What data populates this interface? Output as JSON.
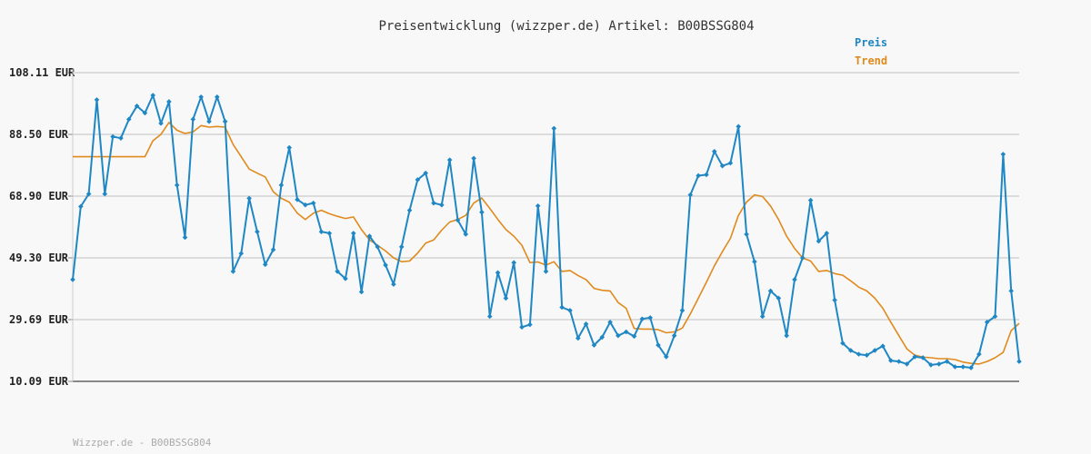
{
  "chart_data": {
    "type": "line",
    "title": "Preisentwicklung (wizzper.de) Artikel: B00BSSG804",
    "footer": "Wizzper.de - B00BSSG804",
    "ylim": [
      10.09,
      108.11
    ],
    "y_ticks": [
      "108.11 EUR",
      "88.50 EUR",
      "68.90 EUR",
      "49.30 EUR",
      "29.69 EUR",
      "10.09 EUR"
    ],
    "y_tick_values": [
      108.11,
      88.5,
      68.9,
      49.3,
      29.69,
      10.09
    ],
    "grid": true,
    "legend_position": "top-right",
    "colors": {
      "preis": "#1f87c4",
      "trend": "#e08a1e",
      "grid": "#dcdcdc",
      "axis": "#888888"
    },
    "series": [
      {
        "name": "Preis",
        "values": [
          42.4,
          65.6,
          69.6,
          99.5,
          69.6,
          87.8,
          87.3,
          93.3,
          97.5,
          95.3,
          100.9,
          92.0,
          98.9,
          72.4,
          55.8,
          93.3,
          100.4,
          92.6,
          100.4,
          92.6,
          45.0,
          50.7,
          68.2,
          57.6,
          47.2,
          51.9,
          72.4,
          84.3,
          67.8,
          66.1,
          66.7,
          57.6,
          57.1,
          45.0,
          42.7,
          57.1,
          38.5,
          56.2,
          52.8,
          47.0,
          40.9,
          52.8,
          64.4,
          74.1,
          76.2,
          66.7,
          66.1,
          80.4,
          61.3,
          56.8,
          80.9,
          63.8,
          30.7,
          44.6,
          36.5,
          47.8,
          27.3,
          28.1,
          65.8,
          45.0,
          90.4,
          33.6,
          32.6,
          23.8,
          28.3,
          21.6,
          24.1,
          28.9,
          24.6,
          25.8,
          24.4,
          29.9,
          30.3,
          21.6,
          17.9,
          24.6,
          32.6,
          69.3,
          75.4,
          75.7,
          83.1,
          78.5,
          79.4,
          91.0,
          56.8,
          48.1,
          30.7,
          38.8,
          36.5,
          24.6,
          42.4,
          49.3,
          67.6,
          54.6,
          57.1,
          35.9,
          22.2,
          19.9,
          18.7,
          18.4,
          19.9,
          21.3,
          16.7,
          16.4,
          15.6,
          17.9,
          17.6,
          15.3,
          15.6,
          16.4,
          14.7,
          14.7,
          14.4,
          18.7,
          28.9,
          30.7,
          82.2,
          38.8,
          16.4
        ],
        "color": "#1f87c4"
      },
      {
        "name": "Trend",
        "values": [
          81.4,
          81.4,
          81.4,
          81.4,
          81.4,
          81.4,
          81.4,
          81.4,
          81.4,
          81.4,
          86.5,
          88.5,
          92.3,
          89.8,
          88.8,
          89.3,
          91.3,
          90.8,
          91.0,
          90.8,
          85.3,
          81.4,
          77.5,
          76.2,
          75.0,
          70.3,
          68.2,
          67.0,
          63.5,
          61.5,
          63.5,
          64.4,
          63.3,
          62.5,
          61.8,
          62.3,
          58.3,
          55.0,
          53.3,
          51.5,
          49.3,
          48.1,
          48.3,
          50.8,
          54.0,
          55.0,
          58.1,
          60.7,
          61.5,
          62.8,
          66.7,
          68.3,
          65.0,
          61.5,
          58.3,
          56.2,
          53.3,
          47.8,
          48.0,
          47.0,
          48.1,
          45.0,
          45.3,
          43.7,
          42.4,
          39.6,
          39.0,
          38.8,
          35.1,
          33.3,
          26.9,
          26.7,
          26.7,
          26.5,
          25.5,
          25.8,
          27.0,
          31.5,
          36.5,
          41.5,
          46.8,
          51.3,
          55.5,
          62.8,
          67.0,
          69.3,
          68.8,
          65.8,
          61.5,
          56.2,
          52.3,
          49.3,
          48.3,
          45.0,
          45.3,
          44.3,
          43.8,
          42.0,
          40.0,
          38.8,
          36.5,
          33.3,
          28.9,
          24.6,
          20.4,
          18.4,
          17.8,
          17.6,
          17.3,
          17.3,
          17.0,
          16.2,
          15.8,
          15.6,
          16.4,
          17.6,
          19.3,
          26.2,
          28.5
        ]
      }
    ]
  }
}
